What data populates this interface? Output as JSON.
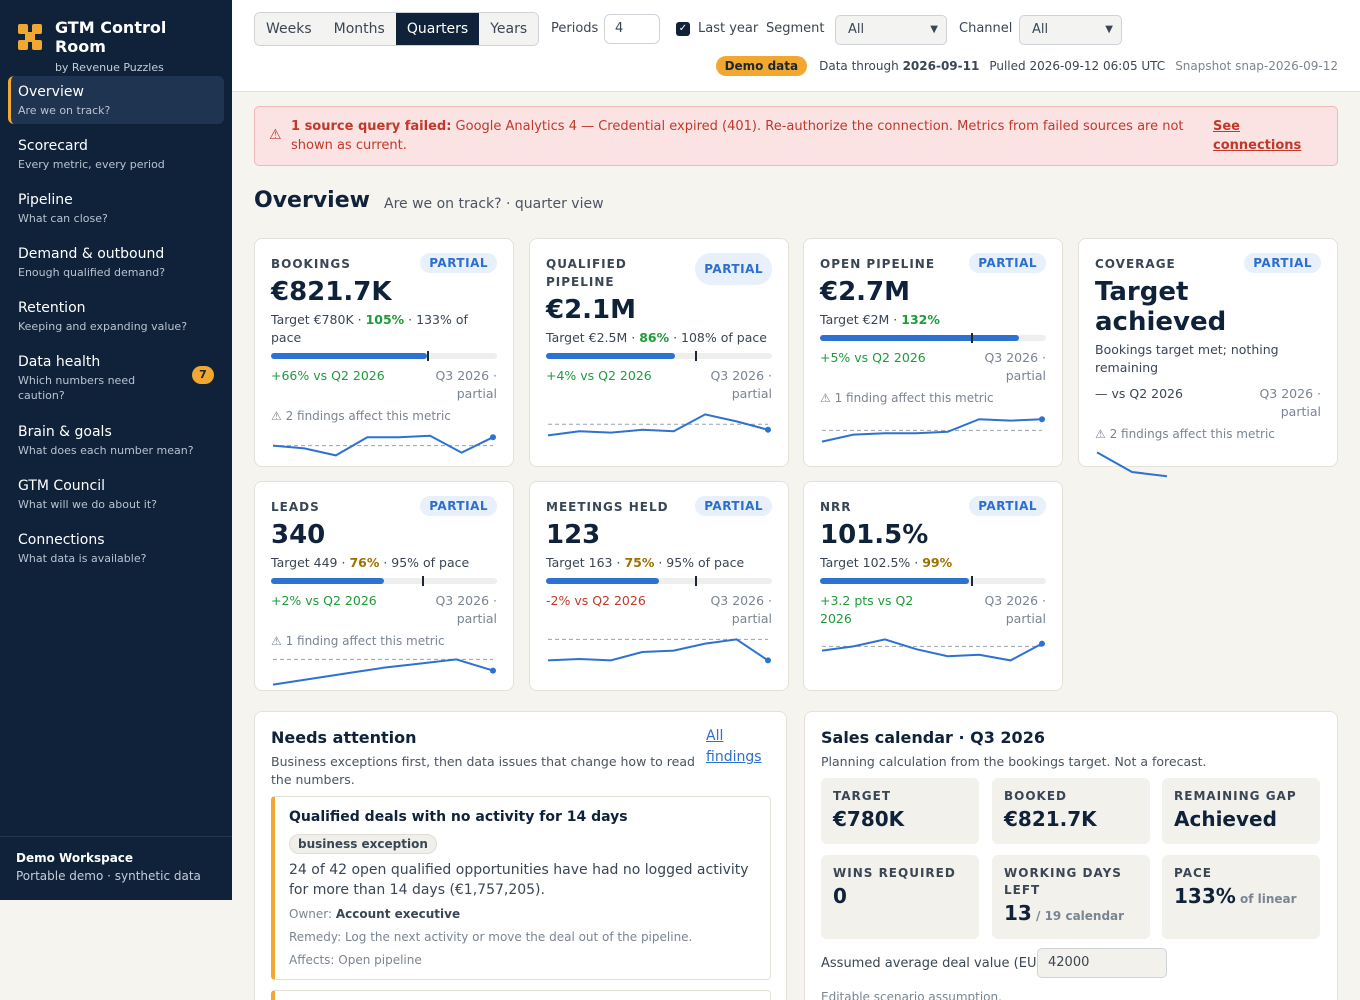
{
  "brand": {
    "title": "GTM Control Room",
    "subtitle": "by Revenue Puzzles"
  },
  "sidebar": {
    "items": [
      {
        "label": "Overview",
        "desc": "Are we on track?"
      },
      {
        "label": "Scorecard",
        "desc": "Every metric, every period"
      },
      {
        "label": "Pipeline",
        "desc": "What can close?"
      },
      {
        "label": "Demand & outbound",
        "desc": "Enough qualified demand?"
      },
      {
        "label": "Retention",
        "desc": "Keeping and expanding value?"
      },
      {
        "label": "Data health",
        "desc": "Which numbers need caution?",
        "badge": "7"
      },
      {
        "label": "Brain & goals",
        "desc": "What does each number mean?"
      },
      {
        "label": "GTM Council",
        "desc": "What will we do about it?"
      },
      {
        "label": "Connections",
        "desc": "What data is available?"
      }
    ],
    "workspace": {
      "name": "Demo Workspace",
      "sub": "Portable demo · synthetic data"
    }
  },
  "toolbar": {
    "periods_tabs": [
      "Weeks",
      "Months",
      "Quarters",
      "Years"
    ],
    "active_tab": "Quarters",
    "periods_label": "Periods",
    "periods_value": "4",
    "last_year_label": "Last year",
    "segment_label": "Segment",
    "segment_value": "All",
    "channel_label": "Channel",
    "channel_value": "All",
    "demo_badge": "Demo data",
    "data_through_label": "Data through",
    "data_through_value": "2026-09-11",
    "pulled": "Pulled 2026-09-12 06:05 UTC",
    "snapshot": "Snapshot snap-2026-09-12"
  },
  "alert": {
    "strong": "1 source query failed:",
    "text": "Google Analytics 4 — Credential expired (401). Re-authorize the connection. Metrics from failed sources are not shown as current.",
    "link": "See connections"
  },
  "page": {
    "title": "Overview",
    "subtitle": "Are we on track? · quarter view"
  },
  "cards": [
    {
      "label": "BOOKINGS",
      "badge": "PARTIAL",
      "value": "€821.7K",
      "target": "Target €780K · ",
      "attain": "105%",
      "attain_tone": "g",
      "pace": " · 133% of pace",
      "progress": 0.69,
      "target_mark": 0.69,
      "delta": "+66% vs Q2 2026",
      "delta_tone": "up",
      "period": "Q3 2026 · partial",
      "finding": "⚠ 2 findings affect this metric",
      "spark": [
        0.55,
        0.45,
        0.2,
        0.85,
        0.85,
        0.9,
        0.3,
        0.85
      ],
      "spark_ref": 0.55
    },
    {
      "label": "QUALIFIED PIPELINE",
      "badge": "PARTIAL",
      "value": "€2.1M",
      "target": "Target €2.5M · ",
      "attain": "86%",
      "attain_tone": "g",
      "pace": " · 108% of pace",
      "progress": 0.57,
      "target_mark": 0.66,
      "delta": "+4% vs Q2 2026",
      "delta_tone": "up",
      "period": "Q3 2026 · partial",
      "finding": "",
      "spark": [
        0.2,
        0.35,
        0.3,
        0.4,
        0.35,
        0.95,
        0.7,
        0.4
      ],
      "spark_ref": 0.6
    },
    {
      "label": "OPEN PIPELINE",
      "badge": "PARTIAL",
      "value": "€2.7M",
      "target": "Target €2M · ",
      "attain": "132%",
      "attain_tone": "g",
      "pace": "",
      "progress": 0.88,
      "target_mark": 0.67,
      "delta": "+5% vs Q2 2026",
      "delta_tone": "up",
      "period": "Q3 2026 · partial",
      "finding": "⚠ 1 finding affect this metric",
      "spark": [
        0.05,
        0.3,
        0.35,
        0.35,
        0.4,
        0.85,
        0.8,
        0.85
      ],
      "spark_ref": 0.45
    },
    {
      "label": "COVERAGE",
      "badge": "PARTIAL",
      "value": "Target achieved",
      "target": "Bookings target met; nothing remaining",
      "attain": "",
      "attain_tone": "",
      "pace": "",
      "progress": null,
      "target_mark": null,
      "delta": "— vs Q2 2026",
      "delta_tone": "neutral",
      "period": "Q3 2026 · partial",
      "finding": "⚠ 2 findings affect this metric",
      "spark": [
        0.95,
        0.25,
        0.1
      ],
      "spark_ref": null
    },
    {
      "label": "LEADS",
      "badge": "PARTIAL",
      "value": "340",
      "target": "Target 449 · ",
      "attain": "76%",
      "attain_tone": "y",
      "pace": " · 95% of pace",
      "progress": 0.5,
      "target_mark": 0.67,
      "delta": "+2% vs Q2 2026",
      "delta_tone": "up",
      "period": "Q3 2026 · partial",
      "finding": "⚠ 1 finding affect this metric",
      "spark": [
        0.05,
        0.25,
        0.45,
        0.65,
        0.8,
        0.95,
        0.55
      ],
      "spark_ref": 0.95
    },
    {
      "label": "MEETINGS HELD",
      "badge": "PARTIAL",
      "value": "123",
      "target": "Target 163 · ",
      "attain": "75%",
      "attain_tone": "y",
      "pace": " · 95% of pace",
      "progress": 0.5,
      "target_mark": 0.66,
      "delta": "-2% vs Q2 2026",
      "delta_tone": "down",
      "period": "Q3 2026 · partial",
      "finding": "",
      "spark": [
        0.2,
        0.25,
        0.2,
        0.5,
        0.55,
        0.8,
        0.95,
        0.2
      ],
      "spark_ref": 0.95
    },
    {
      "label": "NRR",
      "badge": "PARTIAL",
      "value": "101.5%",
      "target": "Target 102.5% · ",
      "attain": "99%",
      "attain_tone": "y",
      "pace": "",
      "progress": 0.66,
      "target_mark": 0.67,
      "delta": "+3.2 pts vs Q2 2026",
      "delta_tone": "up",
      "period": "Q3 2026 · partial",
      "finding": "",
      "spark": [
        0.55,
        0.7,
        0.95,
        0.6,
        0.35,
        0.4,
        0.2,
        0.8
      ],
      "spark_ref": 0.7
    }
  ],
  "attention": {
    "title": "Needs attention",
    "subtitle": "Business exceptions first, then data issues that change how to read the numbers.",
    "link": "All findings",
    "issue": {
      "title": "Qualified deals with no activity for 14 days",
      "tag": "business exception",
      "body": "24 of 42 open qualified opportunities have had no logged activity for more than 14 days (€1,757,205).",
      "owner_label": "Owner:",
      "owner": "Account executive",
      "remedy": "Remedy: Log the next activity or move the deal out of the pipeline.",
      "affects": "Affects: Open pipeline"
    }
  },
  "calendar": {
    "title": "Sales calendar · Q3 2026",
    "subtitle": "Planning calculation from the bookings target. Not a forecast.",
    "boxes": [
      {
        "label": "TARGET",
        "value": "€780K",
        "small": ""
      },
      {
        "label": "BOOKED",
        "value": "€821.7K",
        "small": ""
      },
      {
        "label": "REMAINING GAP",
        "value": "Achieved",
        "small": ""
      },
      {
        "label": "WINS REQUIRED",
        "value": "0",
        "small": ""
      },
      {
        "label": "WORKING DAYS LEFT",
        "value": "13",
        "small": " / 19 calendar"
      },
      {
        "label": "PACE",
        "value": "133%",
        "small": " of linear"
      }
    ],
    "deal_label": "Assumed average deal value (EUR)",
    "deal_value": "42000",
    "deal_note": "Editable scenario assumption."
  },
  "colors": {
    "sidebar": "#0f2239",
    "accent": "#f0a830",
    "line": "#2d72d2"
  }
}
